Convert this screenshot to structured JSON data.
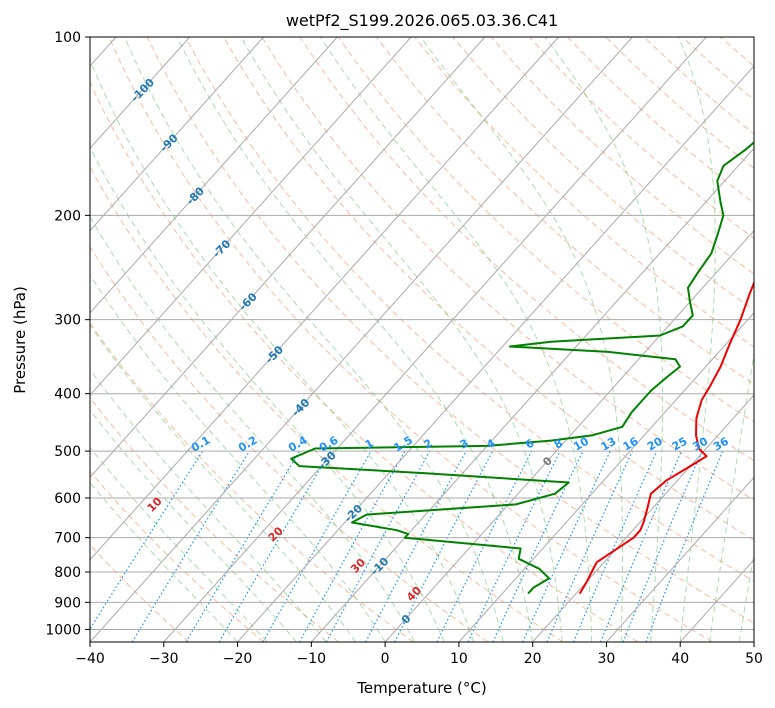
{
  "chart_data": {
    "type": "line",
    "title": "wetPf2_S199.2026.065.03.36.C41",
    "xlabel": "Temperature (°C)",
    "ylabel": "Pressure (hPa)",
    "xlim": [
      -40,
      50
    ],
    "ylim": [
      1050,
      100
    ],
    "x_ticks": [
      "−40",
      "−30",
      "−20",
      "−10",
      "0",
      "10",
      "20",
      "30",
      "40",
      "50"
    ],
    "x_tick_values": [
      -40,
      -30,
      -20,
      -10,
      0,
      10,
      20,
      30,
      40,
      50
    ],
    "y_ticks": [
      "100",
      "200",
      "300",
      "400",
      "500",
      "600",
      "700",
      "800",
      "900",
      "1000"
    ],
    "y_tick_values": [
      100,
      200,
      300,
      400,
      500,
      600,
      700,
      800,
      900,
      1000
    ],
    "skew_degrees_per_decade": 72,
    "series": [
      {
        "name": "temperature",
        "color": "#ee0000",
        "points": [
          [
            20.5,
            870
          ],
          [
            20,
            830
          ],
          [
            19.5,
            800
          ],
          [
            19,
            770
          ],
          [
            21,
            700
          ],
          [
            21,
            680
          ],
          [
            20.5,
            660
          ],
          [
            19.5,
            630
          ],
          [
            18,
            590
          ],
          [
            18.5,
            560
          ],
          [
            20,
            530
          ],
          [
            21,
            510
          ],
          [
            19,
            495
          ],
          [
            17,
            470
          ],
          [
            15,
            440
          ],
          [
            13.5,
            410
          ],
          [
            13,
            390
          ],
          [
            12,
            360
          ],
          [
            10.5,
            330
          ],
          [
            9,
            300
          ],
          [
            7,
            270
          ],
          [
            5,
            240
          ],
          [
            3.5,
            215
          ],
          [
            3,
            200
          ],
          [
            3.5,
            180
          ],
          [
            3.5,
            165
          ],
          [
            3.5,
            150
          ],
          [
            3.5,
            140
          ],
          [
            4.5,
            130
          ],
          [
            5.5,
            123
          ],
          [
            6,
            117
          ],
          [
            7,
            110
          ],
          [
            8,
            104
          ],
          [
            9,
            100
          ]
        ]
      },
      {
        "name": "dewpoint",
        "color": "#008000",
        "points": [
          [
            13.5,
            870
          ],
          [
            13.5,
            850
          ],
          [
            14.5,
            820
          ],
          [
            12,
            790
          ],
          [
            8,
            760
          ],
          [
            7,
            730
          ],
          [
            -10,
            700
          ],
          [
            -10,
            690
          ],
          [
            -12,
            680
          ],
          [
            -19,
            660
          ],
          [
            -18,
            640
          ],
          [
            1,
            615
          ],
          [
            5,
            590
          ],
          [
            5.5,
            565
          ],
          [
            -15,
            545
          ],
          [
            -33,
            530
          ],
          [
            -35,
            515
          ],
          [
            -33,
            495
          ],
          [
            -10,
            490
          ],
          [
            -2,
            480
          ],
          [
            3,
            470
          ],
          [
            6,
            455
          ],
          [
            5.5,
            430
          ],
          [
            5.5,
            410
          ],
          [
            5.5,
            395
          ],
          [
            6,
            375
          ],
          [
            6.5,
            360
          ],
          [
            5,
            350
          ],
          [
            -5,
            340
          ],
          [
            -19,
            333
          ],
          [
            -14,
            327
          ],
          [
            0,
            319
          ],
          [
            2,
            308
          ],
          [
            2,
            295
          ],
          [
            0,
            280
          ],
          [
            -2,
            265
          ],
          [
            -2.5,
            250
          ],
          [
            -3,
            232
          ],
          [
            -4.5,
            215
          ],
          [
            -6,
            200
          ],
          [
            -8,
            190
          ],
          [
            -11,
            175
          ],
          [
            -12,
            165
          ],
          [
            -11,
            155
          ],
          [
            -10,
            140
          ],
          [
            -9,
            130
          ],
          [
            -9,
            125
          ],
          [
            -10,
            119
          ],
          [
            -9,
            112
          ],
          [
            -7.5,
            105
          ],
          [
            -6,
            100
          ]
        ]
      }
    ],
    "mixing_ratio_labels": [
      "0.1",
      "0.2",
      "0.4",
      "0.6",
      "1",
      "1.5",
      "2",
      "3",
      "4",
      "6",
      "8",
      "10",
      "13",
      "16",
      "20",
      "25",
      "30",
      "36"
    ],
    "mixing_ratio_values": [
      0.1,
      0.2,
      0.4,
      0.6,
      1,
      1.5,
      2,
      3,
      4,
      6,
      8,
      10,
      13,
      16,
      20,
      25,
      30,
      36
    ],
    "isotherm_labels": [
      "-100",
      "-90",
      "-80",
      "-70",
      "-60",
      "-50",
      "-40",
      "-30",
      "-20",
      "-10",
      "0"
    ],
    "moist_adiabat_labels": [
      "10",
      "20",
      "30",
      "40"
    ],
    "colors": {
      "isotherm": "#aaaaaa",
      "isobar": "#aaaaaa",
      "dry_adiabat": "#f4a582",
      "moist_adiabat": "#74c476",
      "mixing_ratio": "#1e90ff",
      "isotherm_label": "#1f77b4",
      "moist_label": "#d62728",
      "zero_label": "#777777"
    }
  }
}
